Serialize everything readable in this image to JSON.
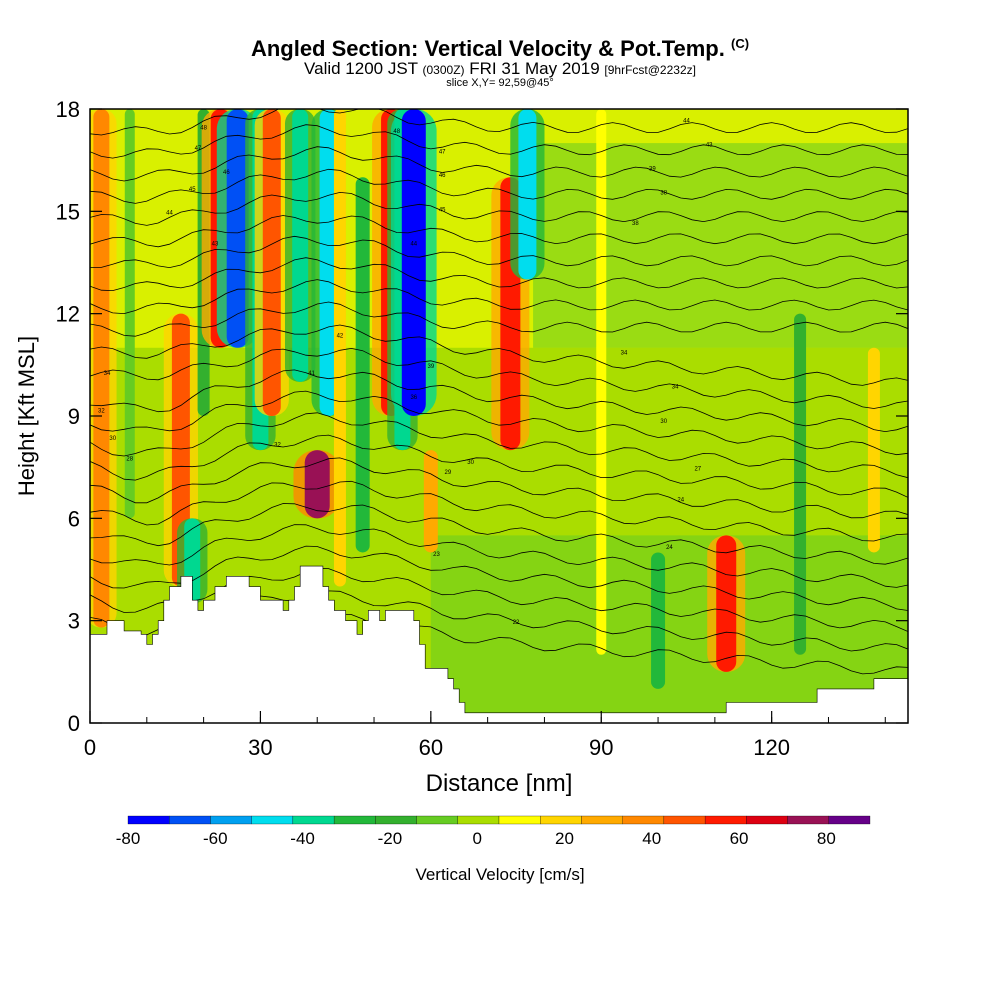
{
  "title": {
    "main": "Angled Section: Vertical Velocity & Pot.Temp.",
    "unit": "(C)",
    "valid_prefix": "Valid 1200 JST",
    "zulu": "(0300Z)",
    "date": "FRI 31 May 2019",
    "forecast": "[9hrFcst@2232z]",
    "slice": "slice X,Y= 92,59@45°"
  },
  "chart_data": {
    "type": "heatmap",
    "xlabel": "Distance [nm]",
    "ylabel": "Height [Kft MSL]",
    "xlim": [
      0,
      144
    ],
    "ylim": [
      0,
      18
    ],
    "xticks": [
      0,
      30,
      60,
      90,
      120
    ],
    "yticks": [
      0,
      3,
      6,
      9,
      12,
      15,
      18
    ],
    "colorbar": {
      "label": "Vertical Velocity [cm/s]",
      "ticks": [
        -80,
        -60,
        -40,
        -20,
        0,
        20,
        40,
        60,
        80
      ],
      "bins": [
        -80,
        -70,
        -60,
        -50,
        -40,
        -30,
        -20,
        -10,
        0,
        10,
        20,
        30,
        40,
        50,
        60,
        70,
        80,
        90
      ],
      "colors": [
        "#0000ff",
        "#0050f5",
        "#00a0f0",
        "#00ddee",
        "#00d890",
        "#22b83a",
        "#33b02e",
        "#66cc22",
        "#aadd00",
        "#ffff00",
        "#ffd500",
        "#ffaa00",
        "#ff8800",
        "#ff5500",
        "#ff1a00",
        "#dd0011",
        "#991155",
        "#660088"
      ]
    },
    "velocity_plumes": [
      {
        "x": 2,
        "y": [
          2.8,
          18
        ],
        "w": 40
      },
      {
        "x": 7,
        "y": [
          6,
          18
        ],
        "w": -10
      },
      {
        "x": 16,
        "y": [
          4,
          12
        ],
        "w": 50
      },
      {
        "x": 18,
        "y": [
          3.5,
          6
        ],
        "w": -40
      },
      {
        "x": 20,
        "y": [
          9,
          18
        ],
        "w": -20
      },
      {
        "x": 23,
        "y": [
          11,
          18
        ],
        "w": 60
      },
      {
        "x": 26,
        "y": [
          11,
          18
        ],
        "w": -70
      },
      {
        "x": 30,
        "y": [
          8,
          18
        ],
        "w": -40
      },
      {
        "x": 32,
        "y": [
          9,
          18
        ],
        "w": 50
      },
      {
        "x": 37,
        "y": [
          10,
          18
        ],
        "w": -40
      },
      {
        "x": 40,
        "y": [
          6,
          8
        ],
        "w": 85
      },
      {
        "x": 42,
        "y": [
          9,
          18
        ],
        "w": -50
      },
      {
        "x": 44,
        "y": [
          4,
          18
        ],
        "w": 20
      },
      {
        "x": 48,
        "y": [
          5,
          16
        ],
        "w": -30
      },
      {
        "x": 53,
        "y": [
          9,
          18
        ],
        "w": 60
      },
      {
        "x": 55,
        "y": [
          8,
          18
        ],
        "w": -40
      },
      {
        "x": 57,
        "y": [
          9,
          18
        ],
        "w": -80
      },
      {
        "x": 60,
        "y": [
          5,
          8
        ],
        "w": 30
      },
      {
        "x": 74,
        "y": [
          8,
          16
        ],
        "w": 60
      },
      {
        "x": 77,
        "y": [
          13,
          18
        ],
        "w": -50
      },
      {
        "x": 90,
        "y": [
          2,
          18
        ],
        "w": 10
      },
      {
        "x": 100,
        "y": [
          1,
          5
        ],
        "w": -30
      },
      {
        "x": 112,
        "y": [
          1.5,
          5.5
        ],
        "w": 60
      },
      {
        "x": 125,
        "y": [
          2,
          12
        ],
        "w": -20
      },
      {
        "x": 138,
        "y": [
          5,
          11
        ],
        "w": 20
      }
    ],
    "isotherm_labels": [
      {
        "x": 20,
        "y": 17.4,
        "text": "48"
      },
      {
        "x": 19,
        "y": 16.8,
        "text": "47"
      },
      {
        "x": 24,
        "y": 16.1,
        "text": "46"
      },
      {
        "x": 18,
        "y": 15.6,
        "text": "45"
      },
      {
        "x": 14,
        "y": 14.9,
        "text": "44"
      },
      {
        "x": 22,
        "y": 14.0,
        "text": "43"
      },
      {
        "x": 54,
        "y": 17.3,
        "text": "48"
      },
      {
        "x": 62,
        "y": 16.7,
        "text": "47"
      },
      {
        "x": 62,
        "y": 16.0,
        "text": "46"
      },
      {
        "x": 62,
        "y": 15.0,
        "text": "45"
      },
      {
        "x": 57,
        "y": 14.0,
        "text": "44"
      },
      {
        "x": 105,
        "y": 17.6,
        "text": "44"
      },
      {
        "x": 109,
        "y": 16.9,
        "text": "43"
      },
      {
        "x": 99,
        "y": 16.2,
        "text": "39"
      },
      {
        "x": 101,
        "y": 15.5,
        "text": "38"
      },
      {
        "x": 96,
        "y": 14.6,
        "text": "38"
      },
      {
        "x": 44,
        "y": 11.3,
        "text": "42"
      },
      {
        "x": 39,
        "y": 10.2,
        "text": "41"
      },
      {
        "x": 60,
        "y": 10.4,
        "text": "39"
      },
      {
        "x": 57,
        "y": 9.5,
        "text": "36"
      },
      {
        "x": 94,
        "y": 10.8,
        "text": "34"
      },
      {
        "x": 103,
        "y": 9.8,
        "text": "34"
      },
      {
        "x": 3,
        "y": 10.2,
        "text": "34"
      },
      {
        "x": 2,
        "y": 9.1,
        "text": "32"
      },
      {
        "x": 4,
        "y": 8.3,
        "text": "30"
      },
      {
        "x": 7,
        "y": 7.7,
        "text": "28"
      },
      {
        "x": 33,
        "y": 8.1,
        "text": "32"
      },
      {
        "x": 67,
        "y": 7.6,
        "text": "30"
      },
      {
        "x": 63,
        "y": 7.3,
        "text": "29"
      },
      {
        "x": 101,
        "y": 8.8,
        "text": "30"
      },
      {
        "x": 107,
        "y": 7.4,
        "text": "27"
      },
      {
        "x": 104,
        "y": 6.5,
        "text": "24"
      },
      {
        "x": 61,
        "y": 4.9,
        "text": "23"
      },
      {
        "x": 102,
        "y": 5.1,
        "text": "24"
      },
      {
        "x": 75,
        "y": 2.9,
        "text": "22"
      }
    ],
    "terrain_profile": [
      [
        0,
        2.6
      ],
      [
        3,
        2.6
      ],
      [
        3,
        3.0
      ],
      [
        6,
        3.0
      ],
      [
        6,
        2.7
      ],
      [
        9,
        2.7
      ],
      [
        9,
        2.6
      ],
      [
        10,
        2.6
      ],
      [
        10,
        2.3
      ],
      [
        11,
        2.3
      ],
      [
        11,
        2.6
      ],
      [
        12,
        2.6
      ],
      [
        12,
        3.0
      ],
      [
        13,
        3.0
      ],
      [
        13,
        3.6
      ],
      [
        14,
        3.6
      ],
      [
        14,
        4.0
      ],
      [
        16,
        4.0
      ],
      [
        16,
        4.3
      ],
      [
        18,
        4.3
      ],
      [
        18,
        3.6
      ],
      [
        19,
        3.6
      ],
      [
        19,
        3.3
      ],
      [
        20,
        3.3
      ],
      [
        20,
        3.6
      ],
      [
        22,
        3.6
      ],
      [
        22,
        4.0
      ],
      [
        24,
        4.0
      ],
      [
        24,
        4.3
      ],
      [
        28,
        4.3
      ],
      [
        28,
        4.0
      ],
      [
        30,
        4.0
      ],
      [
        30,
        3.6
      ],
      [
        34,
        3.6
      ],
      [
        34,
        3.3
      ],
      [
        35,
        3.3
      ],
      [
        35,
        3.6
      ],
      [
        36,
        3.6
      ],
      [
        36,
        4.0
      ],
      [
        37,
        4.0
      ],
      [
        37,
        4.6
      ],
      [
        41,
        4.6
      ],
      [
        41,
        4.0
      ],
      [
        42,
        4.0
      ],
      [
        42,
        3.6
      ],
      [
        43,
        3.6
      ],
      [
        43,
        3.3
      ],
      [
        45,
        3.3
      ],
      [
        45,
        3.0
      ],
      [
        47,
        3.0
      ],
      [
        47,
        2.6
      ],
      [
        48,
        2.6
      ],
      [
        48,
        3.0
      ],
      [
        49,
        3.0
      ],
      [
        49,
        3.3
      ],
      [
        51,
        3.3
      ],
      [
        51,
        3.0
      ],
      [
        52,
        3.0
      ],
      [
        52,
        3.3
      ],
      [
        57,
        3.3
      ],
      [
        57,
        3.0
      ],
      [
        58,
        3.0
      ],
      [
        58,
        2.3
      ],
      [
        59,
        2.3
      ],
      [
        59,
        1.6
      ],
      [
        63,
        1.6
      ],
      [
        63,
        1.3
      ],
      [
        64,
        1.3
      ],
      [
        64,
        1.0
      ],
      [
        65,
        1.0
      ],
      [
        65,
        0.6
      ],
      [
        66,
        0.6
      ],
      [
        66,
        0.3
      ],
      [
        112,
        0.3
      ],
      [
        112,
        0.6
      ],
      [
        128,
        0.6
      ],
      [
        128,
        1.0
      ],
      [
        138,
        1.0
      ],
      [
        138,
        1.3
      ],
      [
        144,
        1.3
      ]
    ]
  }
}
